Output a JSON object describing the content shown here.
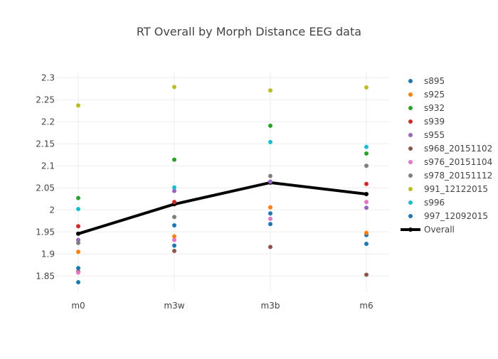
{
  "chart_data": {
    "type": "scatter",
    "title": "RT Overall by Morph Distance EEG data",
    "categories": [
      "m0",
      "m3w",
      "m3b",
      "m6"
    ],
    "ylim": [
      1.815,
      2.315
    ],
    "yticks": [
      1.85,
      1.9,
      1.95,
      2,
      2.05,
      2.1,
      2.15,
      2.2,
      2.25,
      2.3
    ],
    "ytick_labels": [
      "1.85",
      "1.9",
      "1.95",
      "2",
      "2.05",
      "2.1",
      "2.15",
      "2.2",
      "2.25",
      "2.3"
    ],
    "grid": true,
    "legend_placement": "right",
    "series": [
      {
        "name": "s895",
        "color": "#1f77b4",
        "values": [
          1.836,
          1.919,
          1.992,
          1.943
        ]
      },
      {
        "name": "s925",
        "color": "#ff7f0e",
        "values": [
          1.905,
          1.94,
          2.006,
          1.948
        ]
      },
      {
        "name": "s932",
        "color": "#2ca02c",
        "values": [
          2.027,
          2.114,
          2.191,
          2.128
        ]
      },
      {
        "name": "s939",
        "color": "#d62728",
        "values": [
          1.963,
          2.018,
          2.064,
          2.059
        ]
      },
      {
        "name": "s955",
        "color": "#9467bd",
        "values": [
          1.932,
          2.043,
          2.064,
          2.005
        ]
      },
      {
        "name": "s968_20151102",
        "color": "#8c564b",
        "values": [
          1.86,
          1.907,
          1.916,
          1.853
        ]
      },
      {
        "name": "s976_20151104",
        "color": "#e377c2",
        "values": [
          1.858,
          1.932,
          1.98,
          2.018
        ]
      },
      {
        "name": "s978_20151112",
        "color": "#7f7f7f",
        "values": [
          1.925,
          1.984,
          2.077,
          2.1
        ]
      },
      {
        "name": "991_12122015",
        "color": "#bcbd22",
        "values": [
          2.237,
          2.279,
          2.271,
          2.278
        ]
      },
      {
        "name": "s996",
        "color": "#17becf",
        "values": [
          2.002,
          2.051,
          2.154,
          2.143
        ]
      },
      {
        "name": "997_12092015",
        "color": "#1f77b4",
        "values": [
          1.868,
          1.965,
          1.968,
          1.923
        ]
      }
    ],
    "overall": {
      "name": "Overall",
      "color": "#000000",
      "values": [
        1.946,
        2.013,
        2.062,
        2.036
      ]
    }
  }
}
